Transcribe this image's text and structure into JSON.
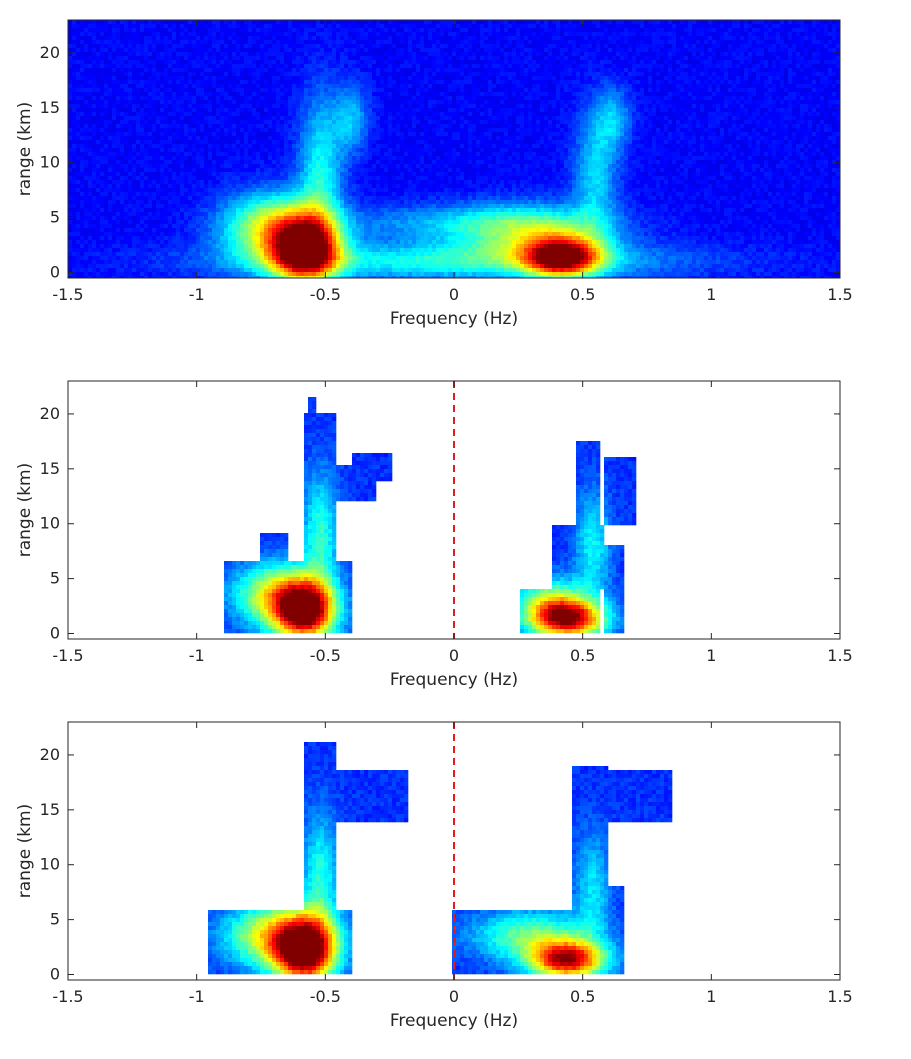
{
  "chart_data": [
    {
      "type": "heatmap",
      "title": "",
      "xlabel": "Frequency (Hz)",
      "ylabel": "range (km)",
      "xlim": [
        -1.5,
        1.5
      ],
      "ylim": [
        -0.5,
        23
      ],
      "xticks": [
        "-1.5",
        "-1",
        "-0.5",
        "0",
        "0.5",
        "1",
        "1.5"
      ],
      "yticks": [
        "0",
        "5",
        "10",
        "15",
        "20"
      ],
      "background": "full",
      "zero_line": false,
      "colormap": "jet",
      "blobs": [
        {
          "x": -0.58,
          "y": 2.0,
          "sx": 0.09,
          "sy": 2.0,
          "a": 1.0
        },
        {
          "x": -0.7,
          "y": 4.0,
          "sx": 0.14,
          "sy": 2.2,
          "a": 0.55
        },
        {
          "x": -0.52,
          "y": 9.0,
          "sx": 0.06,
          "sy": 5.0,
          "a": 0.3
        },
        {
          "x": -0.4,
          "y": 14.0,
          "sx": 0.05,
          "sy": 2.2,
          "a": 0.22
        },
        {
          "x": 0.42,
          "y": 1.4,
          "sx": 0.1,
          "sy": 1.3,
          "a": 0.9
        },
        {
          "x": 0.3,
          "y": 3.5,
          "sx": 0.2,
          "sy": 1.8,
          "a": 0.38
        },
        {
          "x": 0.55,
          "y": 9.0,
          "sx": 0.06,
          "sy": 4.0,
          "a": 0.25
        },
        {
          "x": 0.62,
          "y": 14.0,
          "sx": 0.05,
          "sy": 2.0,
          "a": 0.2
        },
        {
          "x": 0.0,
          "y": 1.0,
          "sx": 0.6,
          "sy": 1.2,
          "a": 0.32
        },
        {
          "x": 0.0,
          "y": 4.5,
          "sx": 0.35,
          "sy": 1.2,
          "a": 0.18
        }
      ]
    },
    {
      "type": "heatmap",
      "title": "",
      "xlabel": "Frequency (Hz)",
      "ylabel": "range (km)",
      "xlim": [
        -1.5,
        1.5
      ],
      "ylim": [
        -0.5,
        23
      ],
      "xticks": [
        "-1.5",
        "-1",
        "-0.5",
        "0",
        "0.5",
        "1",
        "1.5"
      ],
      "yticks": [
        "0",
        "5",
        "10",
        "15",
        "20"
      ],
      "background": "masked",
      "zero_line": true,
      "zero_line_color": "#e41a1c",
      "colormap": "jet",
      "regions": [
        {
          "x": [
            -0.9,
            -0.4
          ],
          "y": [
            0,
            6.5
          ]
        },
        {
          "x": [
            -0.58,
            -0.46
          ],
          "y": [
            0,
            20
          ]
        },
        {
          "x": [
            -0.57,
            -0.53
          ],
          "y": [
            19,
            21.5
          ]
        },
        {
          "x": [
            -0.46,
            -0.3
          ],
          "y": [
            12,
            15.5
          ]
        },
        {
          "x": [
            -0.4,
            -0.24
          ],
          "y": [
            14,
            16.5
          ]
        },
        {
          "x": [
            -0.75,
            -0.64
          ],
          "y": [
            6,
            9
          ]
        },
        {
          "x": [
            0.26,
            0.56
          ],
          "y": [
            0,
            4
          ]
        },
        {
          "x": [
            0.38,
            0.58
          ],
          "y": [
            4,
            10
          ]
        },
        {
          "x": [
            0.48,
            0.56
          ],
          "y": [
            10,
            17.5
          ]
        },
        {
          "x": [
            0.58,
            0.7
          ],
          "y": [
            10,
            16
          ]
        },
        {
          "x": [
            0.58,
            0.66
          ],
          "y": [
            0,
            8
          ]
        }
      ],
      "blobs": [
        {
          "x": -0.58,
          "y": 2.0,
          "sx": 0.08,
          "sy": 1.8,
          "a": 1.0
        },
        {
          "x": -0.68,
          "y": 3.5,
          "sx": 0.12,
          "sy": 2.0,
          "a": 0.55
        },
        {
          "x": -0.52,
          "y": 9.0,
          "sx": 0.05,
          "sy": 4.0,
          "a": 0.3
        },
        {
          "x": 0.44,
          "y": 1.3,
          "sx": 0.1,
          "sy": 1.2,
          "a": 0.92
        },
        {
          "x": 0.38,
          "y": 3.0,
          "sx": 0.1,
          "sy": 1.5,
          "a": 0.4
        },
        {
          "x": 0.54,
          "y": 8.0,
          "sx": 0.05,
          "sy": 3.5,
          "a": 0.25
        }
      ]
    },
    {
      "type": "heatmap",
      "title": "",
      "xlabel": "Frequency (Hz)",
      "ylabel": "range (km)",
      "xlim": [
        -1.5,
        1.5
      ],
      "ylim": [
        -0.5,
        23
      ],
      "xticks": [
        "-1.5",
        "-1",
        "-0.5",
        "0",
        "0.5",
        "1",
        "1.5"
      ],
      "yticks": [
        "0",
        "5",
        "10",
        "15",
        "20"
      ],
      "background": "masked",
      "zero_line": true,
      "zero_line_color": "#e41a1c",
      "colormap": "jet",
      "regions": [
        {
          "x": [
            -0.95,
            -0.4
          ],
          "y": [
            0,
            6
          ]
        },
        {
          "x": [
            -0.58,
            -0.46
          ],
          "y": [
            0,
            21
          ]
        },
        {
          "x": [
            -0.46,
            -0.18
          ],
          "y": [
            14,
            18.5
          ]
        },
        {
          "x": [
            0.0,
            0.56
          ],
          "y": [
            0,
            6
          ]
        },
        {
          "x": [
            0.46,
            0.6
          ],
          "y": [
            0,
            19
          ]
        },
        {
          "x": [
            0.56,
            0.84
          ],
          "y": [
            14,
            18.5
          ]
        },
        {
          "x": [
            0.58,
            0.66
          ],
          "y": [
            0,
            8
          ]
        }
      ],
      "blobs": [
        {
          "x": -0.58,
          "y": 2.0,
          "sx": 0.08,
          "sy": 2.0,
          "a": 1.0
        },
        {
          "x": -0.68,
          "y": 3.5,
          "sx": 0.14,
          "sy": 2.0,
          "a": 0.6
        },
        {
          "x": -0.52,
          "y": 9.0,
          "sx": 0.05,
          "sy": 4.0,
          "a": 0.28
        },
        {
          "x": 0.44,
          "y": 1.3,
          "sx": 0.1,
          "sy": 1.2,
          "a": 0.92
        },
        {
          "x": 0.3,
          "y": 3.5,
          "sx": 0.16,
          "sy": 1.6,
          "a": 0.38
        },
        {
          "x": 0.54,
          "y": 8.0,
          "sx": 0.05,
          "sy": 3.5,
          "a": 0.22
        }
      ]
    }
  ]
}
